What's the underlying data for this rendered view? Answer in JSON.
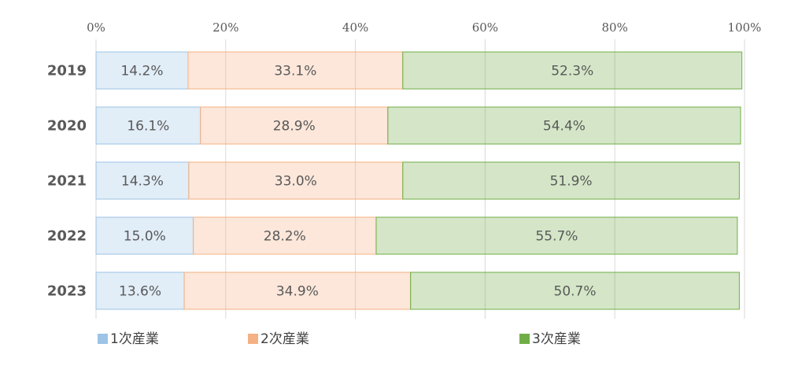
{
  "chart_data": {
    "type": "stacked-barh",
    "categories": [
      "2019",
      "2020",
      "2021",
      "2022",
      "2023"
    ],
    "series": [
      {
        "name": "1次産業",
        "color": "#9dc3e6",
        "values": [
          14.2,
          16.1,
          14.3,
          15.0,
          13.6
        ],
        "value_labels": [
          "14.2%",
          "16.1%",
          "14.3%",
          "15.0%",
          "13.6%"
        ]
      },
      {
        "name": "2次産業",
        "color": "#f4b183",
        "values": [
          33.1,
          28.9,
          33.0,
          28.2,
          34.9
        ],
        "value_labels": [
          "33.1%",
          "28.9%",
          "33.0%",
          "28.2%",
          "34.9%"
        ]
      },
      {
        "name": "3次産業",
        "color": "#70ad47",
        "values": [
          52.3,
          54.4,
          51.9,
          55.7,
          50.7
        ],
        "value_labels": [
          "52.3%",
          "54.4%",
          "51.9%",
          "55.7%",
          "50.7%"
        ]
      }
    ],
    "xlim": [
      0,
      100
    ],
    "xticks": [
      {
        "value": 0,
        "label": "0%"
      },
      {
        "value": 20,
        "label": "20%"
      },
      {
        "value": 40,
        "label": "40%"
      },
      {
        "value": 60,
        "label": "60%"
      },
      {
        "value": 80,
        "label": "80%"
      },
      {
        "value": 100,
        "label": "100%"
      }
    ],
    "grid": true
  }
}
